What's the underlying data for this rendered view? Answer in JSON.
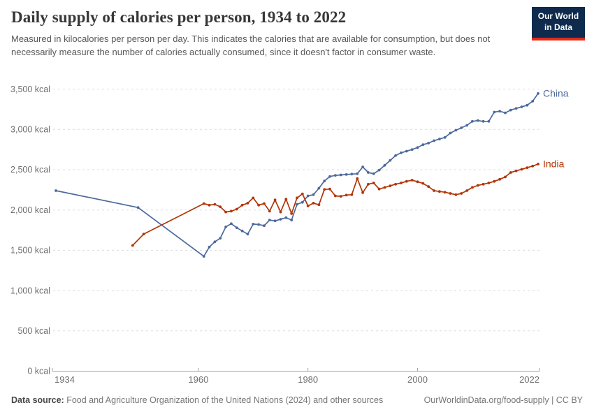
{
  "header": {
    "title": "Daily supply of calories per person, 1934 to 2022",
    "subtitle": "Measured in kilocalories per person per day. This indicates the calories that are available for consumption, but does not necessarily measure the number of calories actually consumed, since it doesn't factor in consumer waste."
  },
  "logo": {
    "line1": "Our World",
    "line2": "in Data",
    "bg_color": "#0e2a4d",
    "accent_color": "#e02b1a"
  },
  "footer": {
    "source_label": "Data source:",
    "source_text": " Food and Agriculture Organization of the United Nations (2024) and other sources",
    "attribution": "OurWorldinData.org/food-supply | CC BY"
  },
  "chart_data": {
    "type": "line",
    "title": "Daily supply of calories per person, 1934 to 2022",
    "unit": "kcal",
    "grid": "dashed-horizontal",
    "grid_color": "#dcdcdc",
    "axis_color": "#a3a3a3",
    "tick_label_color": "#6f6f6f",
    "legend_position": "line-end-labels",
    "x_axis": {
      "range": [
        1934,
        2022
      ],
      "ticks": [
        1934,
        1960,
        1980,
        2000,
        2022
      ]
    },
    "y_axis": {
      "range": [
        0,
        3500
      ],
      "ticks": [
        0,
        500,
        1000,
        1500,
        2000,
        2500,
        3000,
        3500
      ],
      "tick_suffix": " kcal"
    },
    "series": [
      {
        "name": "China",
        "color": "#4c6a9c",
        "points": [
          [
            1934,
            2240
          ],
          [
            1949,
            2030
          ],
          [
            1961,
            1425
          ],
          [
            1962,
            1540
          ],
          [
            1963,
            1605
          ],
          [
            1964,
            1650
          ],
          [
            1965,
            1790
          ],
          [
            1966,
            1830
          ],
          [
            1967,
            1780
          ],
          [
            1968,
            1740
          ],
          [
            1969,
            1700
          ],
          [
            1970,
            1825
          ],
          [
            1971,
            1820
          ],
          [
            1972,
            1805
          ],
          [
            1973,
            1875
          ],
          [
            1974,
            1865
          ],
          [
            1975,
            1885
          ],
          [
            1976,
            1905
          ],
          [
            1977,
            1875
          ],
          [
            1978,
            2070
          ],
          [
            1979,
            2095
          ],
          [
            1980,
            2175
          ],
          [
            1981,
            2190
          ],
          [
            1982,
            2270
          ],
          [
            1983,
            2360
          ],
          [
            1984,
            2415
          ],
          [
            1985,
            2430
          ],
          [
            1986,
            2435
          ],
          [
            1987,
            2440
          ],
          [
            1988,
            2445
          ],
          [
            1989,
            2450
          ],
          [
            1990,
            2535
          ],
          [
            1991,
            2465
          ],
          [
            1992,
            2450
          ],
          [
            1993,
            2495
          ],
          [
            1994,
            2555
          ],
          [
            1995,
            2615
          ],
          [
            1996,
            2675
          ],
          [
            1997,
            2710
          ],
          [
            1998,
            2730
          ],
          [
            1999,
            2750
          ],
          [
            2000,
            2775
          ],
          [
            2001,
            2810
          ],
          [
            2002,
            2830
          ],
          [
            2003,
            2860
          ],
          [
            2004,
            2880
          ],
          [
            2005,
            2900
          ],
          [
            2006,
            2955
          ],
          [
            2007,
            2990
          ],
          [
            2008,
            3020
          ],
          [
            2009,
            3050
          ],
          [
            2010,
            3100
          ],
          [
            2011,
            3110
          ],
          [
            2012,
            3100
          ],
          [
            2013,
            3100
          ],
          [
            2014,
            3215
          ],
          [
            2015,
            3225
          ],
          [
            2016,
            3205
          ],
          [
            2017,
            3240
          ],
          [
            2018,
            3260
          ],
          [
            2019,
            3280
          ],
          [
            2020,
            3300
          ],
          [
            2021,
            3350
          ],
          [
            2022,
            3445
          ]
        ]
      },
      {
        "name": "India",
        "color": "#b13507",
        "points": [
          [
            1948,
            1560
          ],
          [
            1950,
            1700
          ],
          [
            1961,
            2080
          ],
          [
            1962,
            2060
          ],
          [
            1963,
            2070
          ],
          [
            1964,
            2040
          ],
          [
            1965,
            1975
          ],
          [
            1966,
            1985
          ],
          [
            1967,
            2010
          ],
          [
            1968,
            2060
          ],
          [
            1969,
            2085
          ],
          [
            1970,
            2150
          ],
          [
            1971,
            2060
          ],
          [
            1972,
            2080
          ],
          [
            1973,
            1985
          ],
          [
            1974,
            2125
          ],
          [
            1975,
            1975
          ],
          [
            1976,
            2135
          ],
          [
            1977,
            1955
          ],
          [
            1978,
            2150
          ],
          [
            1979,
            2200
          ],
          [
            1980,
            2050
          ],
          [
            1981,
            2085
          ],
          [
            1982,
            2065
          ],
          [
            1983,
            2255
          ],
          [
            1984,
            2260
          ],
          [
            1985,
            2175
          ],
          [
            1986,
            2170
          ],
          [
            1987,
            2185
          ],
          [
            1988,
            2190
          ],
          [
            1989,
            2390
          ],
          [
            1990,
            2215
          ],
          [
            1991,
            2320
          ],
          [
            1992,
            2335
          ],
          [
            1993,
            2260
          ],
          [
            1994,
            2280
          ],
          [
            1995,
            2300
          ],
          [
            1996,
            2320
          ],
          [
            1997,
            2335
          ],
          [
            1998,
            2355
          ],
          [
            1999,
            2370
          ],
          [
            2000,
            2350
          ],
          [
            2001,
            2330
          ],
          [
            2002,
            2290
          ],
          [
            2003,
            2240
          ],
          [
            2004,
            2230
          ],
          [
            2005,
            2220
          ],
          [
            2006,
            2205
          ],
          [
            2007,
            2190
          ],
          [
            2008,
            2205
          ],
          [
            2009,
            2240
          ],
          [
            2010,
            2280
          ],
          [
            2011,
            2305
          ],
          [
            2012,
            2320
          ],
          [
            2013,
            2335
          ],
          [
            2014,
            2355
          ],
          [
            2015,
            2380
          ],
          [
            2016,
            2410
          ],
          [
            2017,
            2465
          ],
          [
            2018,
            2485
          ],
          [
            2019,
            2505
          ],
          [
            2020,
            2525
          ],
          [
            2021,
            2545
          ],
          [
            2022,
            2570
          ]
        ]
      }
    ]
  }
}
